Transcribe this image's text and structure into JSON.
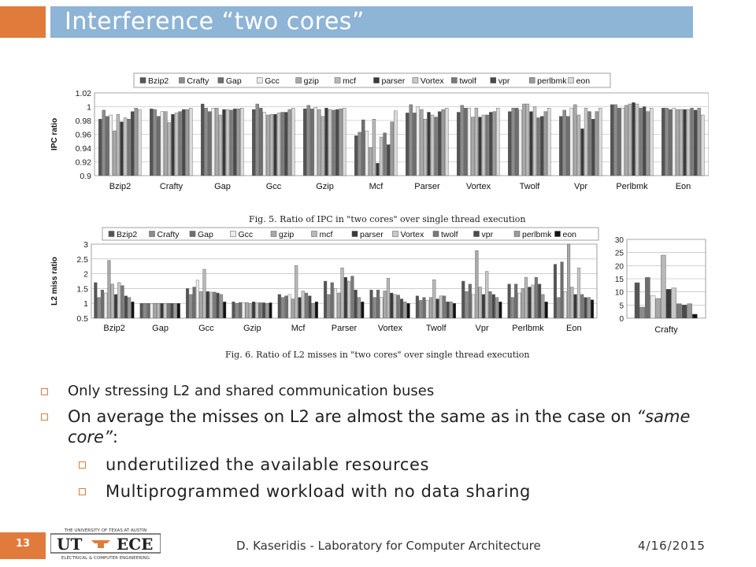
{
  "slide": {
    "title": "Interference “two cores”",
    "page_number": "13",
    "author": "D. Kaseridis - Laboratory for Computer Architecture",
    "date": "4/16/2015",
    "logo": {
      "top_text": "THE UNIVERSITY OF TEXAS AT AUSTIN",
      "bottom_text": "ELECTRICAL & COMPUTER ENGINEERING",
      "left": "UT",
      "right": "ECE"
    }
  },
  "captions": {
    "fig5": "Fig. 5. Ratio of IPC in \"two cores\" over single thread execution",
    "fig6": "Fig. 6. Ratio of L2 misses in \"two cores\" over single thread execution"
  },
  "bullets": {
    "b1": "Only stressing L2 and shared communication buses",
    "b2_pre": "On average the misses on L2 are almost the same as in the case on ",
    "b2_em": "“same core”",
    "b2_post": ":",
    "sub1": "underutilized the available resources",
    "sub2": "Multiprogrammed workload with no data sharing"
  },
  "chart_data": [
    {
      "id": "ipc",
      "type": "bar",
      "ylabel": "IPC ratio",
      "ylim": [
        0.9,
        1.02
      ],
      "yticks": [
        "0.9",
        "0.92",
        "0.94",
        "0.96",
        "0.98",
        "1",
        "1.02"
      ],
      "grid": true,
      "legend_position": "top",
      "categories": [
        "Bzip2",
        "Crafty",
        "Gap",
        "Gcc",
        "Gzip",
        "Mcf",
        "Parser",
        "Vortex",
        "Twolf",
        "Vpr",
        "Perlbmk",
        "Eon"
      ],
      "series_labels": [
        "Bzip2",
        "Crafty",
        "Gap",
        "Gcc",
        "gzip",
        "mcf",
        "parser",
        "Vortex",
        "twolf",
        "vpr",
        "perlbmk",
        "eon"
      ],
      "series_colors": [
        "#555555",
        "#8c8c8c",
        "#6e6e6e",
        "#ececec",
        "#a8a8a8",
        "#b8b8b8",
        "#3a3a3a",
        "#c8c8c8",
        "#7a7a7a",
        "#4a4a4a",
        "#9a9a9a",
        "#dadada"
      ],
      "values": [
        [
          0.982,
          0.995,
          0.986,
          0.988,
          0.965,
          0.989,
          0.978,
          0.984,
          0.982,
          0.993,
          0.998,
          0.996
        ],
        [
          0.997,
          0.996,
          0.986,
          0.993,
          0.993,
          0.977,
          0.989,
          0.991,
          0.993,
          0.996,
          0.996,
          0.998
        ],
        [
          1.004,
          0.998,
          0.993,
          0.998,
          0.998,
          0.988,
          0.996,
          0.996,
          0.995,
          0.997,
          0.997,
          0.998
        ],
        [
          0.996,
          1.004,
          0.998,
          0.992,
          0.988,
          0.989,
          0.989,
          0.991,
          0.992,
          0.992,
          0.996,
          0.998
        ],
        [
          0.997,
          1.002,
          0.997,
          0.999,
          0.996,
          0.986,
          0.998,
          0.996,
          0.995,
          0.996,
          0.997,
          0.998
        ],
        [
          0.958,
          0.963,
          0.981,
          0.965,
          0.941,
          0.982,
          0.918,
          0.956,
          0.962,
          0.945,
          0.978,
          0.994
        ],
        [
          0.991,
          1.003,
          0.991,
          1.0,
          0.996,
          0.982,
          0.992,
          0.988,
          0.985,
          0.993,
          0.996,
          0.998
        ],
        [
          0.992,
          1.002,
          0.998,
          0.998,
          0.985,
          0.998,
          0.985,
          0.988,
          0.988,
          0.992,
          0.993,
          0.998
        ],
        [
          0.993,
          0.998,
          0.998,
          0.995,
          1.004,
          1.004,
          0.993,
          1.0,
          0.984,
          0.986,
          0.993,
          0.998
        ],
        [
          0.986,
          0.995,
          0.986,
          0.998,
          1.003,
          0.988,
          0.968,
          0.998,
          0.993,
          0.982,
          0.993,
          0.998
        ],
        [
          1.003,
          1.003,
          0.998,
          0.998,
          1.002,
          1.004,
          1.006,
          1.004,
          0.998,
          1.0,
          0.993,
          0.998
        ],
        [
          0.998,
          0.998,
          0.996,
          0.998,
          0.996,
          0.996,
          0.996,
          0.996,
          0.998,
          0.995,
          0.998,
          0.988
        ]
      ]
    },
    {
      "id": "l2",
      "type": "bar",
      "ylabel": "L2 miss ratio",
      "ylim": [
        0.5,
        3
      ],
      "yticks": [
        "0.5",
        "1",
        "1.5",
        "2",
        "2.5",
        "3"
      ],
      "grid": true,
      "legend_position": "top",
      "categories": [
        "Bzip2",
        "Gap",
        "Gcc",
        "Gzip",
        "Mcf",
        "Parser",
        "Vortex",
        "Twolf",
        "Vpr",
        "Perlbmk",
        "Eon"
      ],
      "series_labels": [
        "Bzip2",
        "Crafty",
        "Gap",
        "Gcc",
        "gzip",
        "mcf",
        "parser",
        "Vortex",
        "twolf",
        "vpr",
        "perlbmk",
        "eon"
      ],
      "series_colors": [
        "#555555",
        "#8c8c8c",
        "#6e6e6e",
        "#ececec",
        "#a8a8a8",
        "#b8b8b8",
        "#3a3a3a",
        "#c8c8c8",
        "#7a7a7a",
        "#4a4a4a",
        "#9a9a9a",
        "#111111"
      ],
      "values": [
        [
          1.7,
          1.2,
          1.45,
          1.35,
          2.45,
          1.65,
          1.3,
          1.7,
          1.6,
          1.25,
          1.2,
          1.05
        ],
        [
          1.0,
          1.0,
          1.0,
          1.0,
          1.0,
          1.0,
          1.0,
          1.0,
          1.0,
          1.0,
          1.0,
          1.0
        ],
        [
          1.5,
          1.3,
          1.55,
          1.78,
          1.4,
          2.15,
          1.4,
          1.38,
          1.38,
          1.35,
          1.3,
          1.05
        ],
        [
          1.05,
          1.0,
          1.03,
          1.02,
          1.03,
          1.0,
          1.05,
          1.02,
          1.02,
          1.02,
          1.0,
          1.02
        ],
        [
          1.3,
          1.2,
          1.25,
          1.3,
          1.15,
          2.28,
          1.2,
          1.42,
          1.35,
          1.25,
          1.0,
          1.05
        ],
        [
          1.75,
          1.3,
          1.7,
          1.5,
          1.35,
          2.2,
          1.88,
          1.75,
          1.92,
          1.45,
          1.2,
          1.05
        ],
        [
          1.45,
          1.2,
          1.45,
          1.2,
          1.42,
          1.85,
          1.35,
          1.3,
          1.28,
          1.15,
          1.05,
          1.0
        ],
        [
          1.25,
          1.1,
          1.2,
          1.1,
          1.2,
          1.8,
          1.15,
          1.25,
          1.25,
          1.05,
          1.05,
          1.0
        ],
        [
          1.75,
          1.4,
          1.65,
          1.3,
          2.78,
          1.55,
          1.3,
          2.08,
          1.4,
          1.3,
          1.2,
          1.05
        ],
        [
          1.65,
          1.2,
          1.65,
          1.35,
          1.5,
          1.88,
          1.55,
          1.62,
          1.88,
          1.65,
          1.3,
          1.05
        ],
        [
          2.32,
          1.2,
          2.4,
          1.4,
          3.0,
          1.55,
          1.3,
          2.2,
          1.3,
          1.2,
          1.2,
          1.12
        ]
      ]
    },
    {
      "id": "crafty",
      "type": "bar",
      "ylim": [
        0,
        30
      ],
      "yticks": [
        "0",
        "5",
        "10",
        "15",
        "20",
        "25",
        "30"
      ],
      "grid": true,
      "categories": [
        "Crafty"
      ],
      "series_colors": [
        "#555555",
        "#8c8c8c",
        "#6e6e6e",
        "#ececec",
        "#a8a8a8",
        "#b8b8b8",
        "#3a3a3a",
        "#c8c8c8",
        "#7a7a7a",
        "#4a4a4a",
        "#9a9a9a",
        "#111111"
      ],
      "values": [
        [
          13.5,
          4.2,
          15.5,
          8.5,
          7.5,
          24,
          11,
          11.5,
          5.5,
          5,
          5.5,
          1.5
        ]
      ]
    }
  ]
}
